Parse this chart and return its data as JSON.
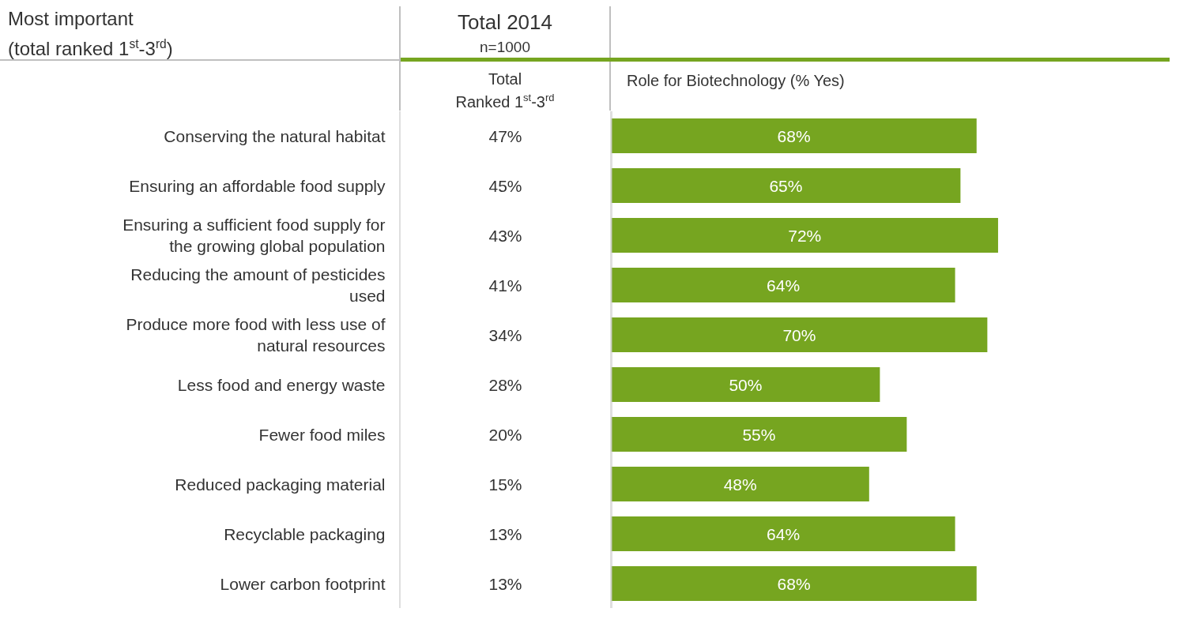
{
  "chart_data": [
    {
      "type": "heatmap",
      "title": "Total 2014",
      "subtitle": "n=1000",
      "ylabel": "Most important (total ranked 1$^{st}$-3$^{rd}$)",
      "categories": [
        "Total Ranked 1$^{st}$-3$^{rd}$"
      ],
      "y_categories": [
        "Conserving the natural habitat",
        "Ensuring an affordable food supply",
        "Ensuring a sufficient food supply for the growing global population",
        "Reducing the amount of pesticides used",
        "Produce more food with less use of natural resources",
        "Less food and energy waste",
        "Fewer food miles",
        "Reduced packaging material",
        "Recyclable packaging",
        "Lower carbon footprint"
      ],
      "cells": [
        [
          47
        ],
        [
          45
        ],
        [
          43
        ],
        [
          41
        ],
        [
          34
        ],
        [
          28
        ],
        [
          20
        ],
        [
          15
        ],
        [
          13
        ],
        [
          13
        ]
      ],
      "cell_labels": [
        [
          "47%"
        ],
        [
          "45%"
        ],
        [
          "43%"
        ],
        [
          "41%"
        ],
        [
          "34%"
        ],
        [
          "28%"
        ],
        [
          "20%"
        ],
        [
          "15%"
        ],
        [
          "13%"
        ],
        [
          "13%"
        ]
      ]
    },
    {
      "type": "bar",
      "orientation": "horizontal",
      "xlabel": "Role for Biotechnology (% Yes)",
      "tick_labels": false,
      "color": "#76a520",
      "xlim": [
        0,
        104
      ],
      "categories": [
        null,
        null,
        null,
        null,
        null,
        null,
        null,
        null,
        null,
        null
      ],
      "values": [
        68,
        65,
        72,
        64,
        70,
        50,
        55,
        48,
        64,
        68
      ],
      "value_labels": [
        "68%",
        "65%",
        "72%",
        "64%",
        "70%",
        "50%",
        "55%",
        "48%",
        "64%",
        "68%"
      ]
    }
  ]
}
